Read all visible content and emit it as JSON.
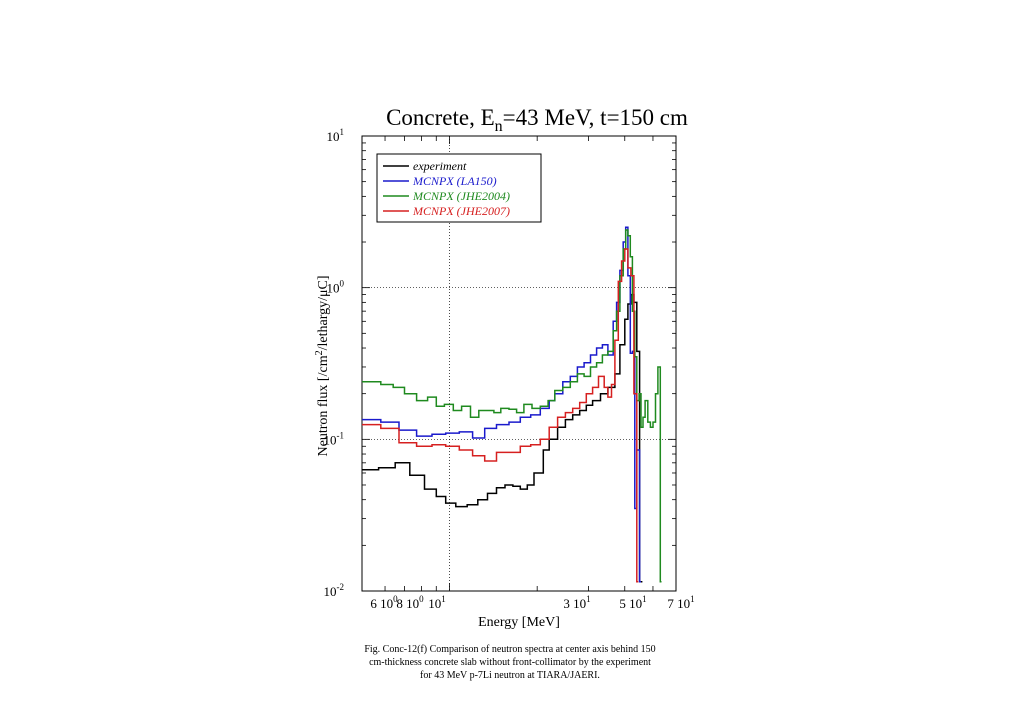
{
  "chart_data": {
    "type": "line",
    "title": "Concrete, E_n=43 MeV, t=150 cm",
    "title_parts": {
      "pre": "Concrete, E",
      "sub": "n",
      "post": "=43 MeV, t=150 cm"
    },
    "xlabel": "Energy [MeV]",
    "ylabel": "Neutron flux [/cm²/lethargy/μC]",
    "ylabel_parts": {
      "a": "Neutron flux [/cm",
      "sup": "2",
      "b": "/lethargy/μC]"
    },
    "xlim": [
      5,
      60
    ],
    "ylim": [
      0.01,
      10
    ],
    "y_scale": "log",
    "x_scale": "log",
    "grid": "dotted lines at x=10 and y=0.1, y=1",
    "x_ticks": [
      {
        "value": 6,
        "mant": "6 10",
        "exp": "0"
      },
      {
        "value": 8,
        "mant": "8 10",
        "exp": "0"
      },
      {
        "value": 10,
        "mant": "10",
        "exp": "1"
      },
      {
        "value": 30,
        "mant": "3 10",
        "exp": "1"
      },
      {
        "value": 50,
        "mant": "5 10",
        "exp": "1"
      },
      {
        "value": 70,
        "mant": "7 10",
        "exp": "1"
      }
    ],
    "y_ticks": [
      {
        "value": 10,
        "mant": "10",
        "exp": "1"
      },
      {
        "value": 1,
        "mant": "10",
        "exp": "0"
      },
      {
        "value": 0.1,
        "mant": "10",
        "exp": "-1"
      },
      {
        "value": 0.01,
        "mant": "10",
        "exp": "-2"
      }
    ],
    "legend_position": "top-left",
    "series": [
      {
        "name": "experiment",
        "color": "#000000",
        "x": [
          5.0,
          5.7,
          6.5,
          7.3,
          8.2,
          9.0,
          9.7,
          10.5,
          11.5,
          12.5,
          13.5,
          14.5,
          15.5,
          16.5,
          17.5,
          18.5,
          19.5,
          21.0,
          22.0,
          23.5,
          25.0,
          26.5,
          28.0,
          29.5,
          31.0,
          33.0,
          35.0,
          37.0,
          38.5,
          40.0,
          41.0,
          42.0,
          43.0,
          44.0,
          45.0
        ],
        "y": [
          0.063,
          0.065,
          0.07,
          0.058,
          0.047,
          0.042,
          0.038,
          0.036,
          0.037,
          0.04,
          0.044,
          0.048,
          0.05,
          0.049,
          0.047,
          0.05,
          0.06,
          0.085,
          0.1,
          0.12,
          0.135,
          0.145,
          0.155,
          0.168,
          0.18,
          0.2,
          0.22,
          0.27,
          0.42,
          0.62,
          0.78,
          0.9,
          0.8,
          0.38,
          0.0115
        ],
        "xend": 46.0
      },
      {
        "name": "MCNPX (LA150)",
        "color": "#1a1acc",
        "x": [
          5.0,
          5.8,
          6.7,
          7.7,
          8.7,
          9.7,
          10.8,
          12.0,
          13.2,
          14.5,
          16.0,
          17.5,
          19.0,
          20.5,
          22.0,
          23.0,
          24.5,
          26.0,
          27.5,
          29.0,
          30.5,
          32.0,
          33.5,
          35.0,
          36.5,
          37.5,
          38.5,
          39.5,
          40.3,
          41.0,
          41.8,
          42.5,
          43.3,
          44.0,
          45.0
        ],
        "y": [
          0.135,
          0.13,
          0.115,
          0.105,
          0.108,
          0.11,
          0.112,
          0.102,
          0.118,
          0.125,
          0.13,
          0.14,
          0.145,
          0.16,
          0.18,
          0.2,
          0.24,
          0.26,
          0.3,
          0.32,
          0.36,
          0.4,
          0.42,
          0.36,
          0.6,
          0.8,
          1.3,
          2.0,
          2.5,
          1.2,
          0.37,
          0.38,
          0.035,
          0.085,
          0.0115
        ],
        "xend": 45.5
      },
      {
        "name": "MCNPX (JHE2004)",
        "color": "#1f8a1f",
        "x": [
          5.0,
          5.8,
          6.4,
          7.0,
          7.7,
          8.4,
          9.0,
          9.6,
          10.3,
          11.0,
          11.8,
          12.6,
          13.4,
          14.2,
          15.0,
          16.0,
          17.0,
          18.0,
          19.2,
          20.5,
          21.8,
          23.0,
          24.5,
          26.0,
          27.5,
          29.0,
          30.5,
          32.0,
          33.5,
          35.0,
          36.5,
          37.5,
          38.5,
          39.5,
          40.3,
          41.0,
          41.8,
          42.5,
          43.3,
          44.0,
          44.8,
          45.5,
          46.2,
          47.0,
          48.0,
          49.0,
          50.0,
          51.0,
          52.0,
          53.0
        ],
        "y": [
          0.24,
          0.23,
          0.22,
          0.2,
          0.18,
          0.19,
          0.165,
          0.17,
          0.155,
          0.165,
          0.14,
          0.155,
          0.155,
          0.15,
          0.16,
          0.158,
          0.15,
          0.17,
          0.16,
          0.165,
          0.18,
          0.21,
          0.22,
          0.24,
          0.27,
          0.26,
          0.3,
          0.32,
          0.36,
          0.38,
          0.52,
          0.7,
          1.2,
          1.8,
          2.4,
          2.2,
          1.6,
          0.7,
          0.35,
          0.18,
          0.2,
          0.12,
          0.14,
          0.18,
          0.13,
          0.12,
          0.13,
          0.2,
          0.3,
          0.0115
        ],
        "xend": 53.5
      },
      {
        "name": "MCNPX (JHE2007)",
        "color": "#d62020",
        "x": [
          5.0,
          5.8,
          6.7,
          7.7,
          8.7,
          9.7,
          10.8,
          12.0,
          13.2,
          14.5,
          16.0,
          17.5,
          19.0,
          20.5,
          22.0,
          23.5,
          25.0,
          26.5,
          28.0,
          29.5,
          31.0,
          32.5,
          34.0,
          35.0,
          36.0,
          37.0,
          38.0,
          39.0,
          40.0,
          41.0,
          42.0,
          43.0,
          44.0
        ],
        "y": [
          0.125,
          0.118,
          0.095,
          0.09,
          0.092,
          0.09,
          0.085,
          0.078,
          0.072,
          0.082,
          0.082,
          0.09,
          0.092,
          0.1,
          0.12,
          0.14,
          0.15,
          0.16,
          0.175,
          0.2,
          0.22,
          0.26,
          0.22,
          0.19,
          0.23,
          0.45,
          1.1,
          1.5,
          1.8,
          1.35,
          1.2,
          0.2,
          0.0115
        ],
        "xend": 44.5
      }
    ]
  },
  "caption": {
    "line1": "Fig. Conc-12(f)    Comparison of neutron spectra at center axis behind 150",
    "line2": "cm-thickness concrete slab without front-collimator by the experiment",
    "line3": "for 43 MeV p-7Li neutron at TIARA/JAERI."
  }
}
